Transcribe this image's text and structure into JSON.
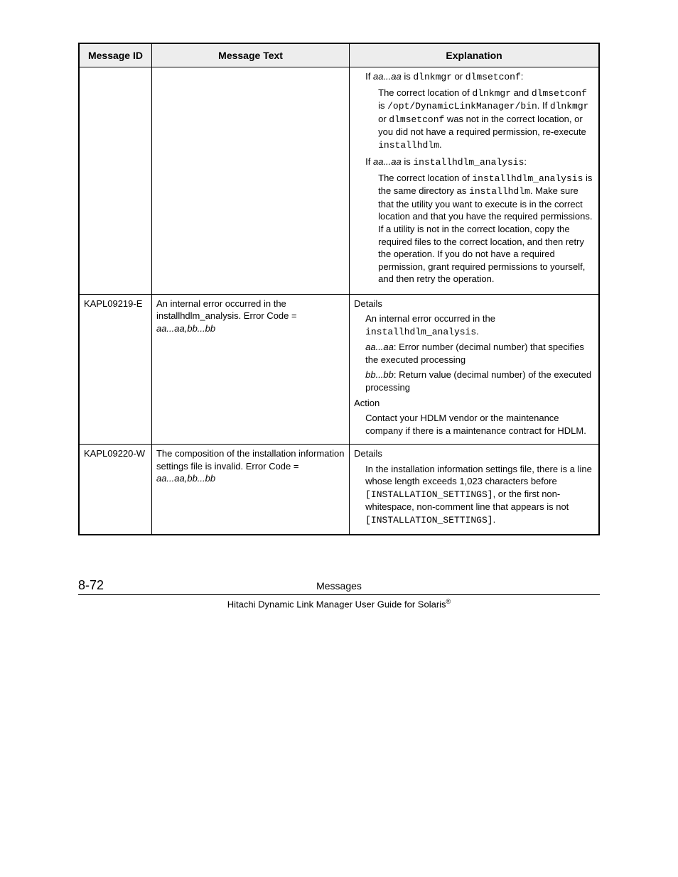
{
  "table": {
    "headers": {
      "c1": "Message ID",
      "c2": "Message Text",
      "c3": "Explanation"
    },
    "row1": {
      "exp": {
        "p1a": "If ",
        "p1b": "aa...aa",
        "p1c": " is ",
        "p1d": "dlnkmgr",
        "p1e": " or ",
        "p1f": "dlmsetconf",
        "p1g": ":",
        "p2a": "The correct location of ",
        "p2b": "dlnkmgr",
        "p2c": " and ",
        "p2d": "dlmsetconf",
        "p2e": " is ",
        "p2f": "/opt/DynamicLinkManager/bin",
        "p2g": ". If ",
        "p2h": "dlnkmgr",
        "p2i": " or ",
        "p2j": "dlmsetconf",
        "p2k": " was not in the correct location, or you did not have a required permission, re-execute ",
        "p2l": "installhdlm",
        "p2m": ".",
        "p3a": "If ",
        "p3b": "aa...aa",
        "p3c": " is ",
        "p3d": "installhdlm_analysis",
        "p3e": ":",
        "p4a": "The correct location of ",
        "p4b": "installhdlm_analysis",
        "p4c": " is the same directory as ",
        "p4d": "installhdlm",
        "p4e": ". Make sure that the utility you want to execute is in the correct location and that you have the required permissions. If a utility is not in the correct location, copy the required files to the correct location, and then retry the operation. If you do not have a required permission, grant required permissions to yourself, and then retry the operation."
      }
    },
    "row2": {
      "id": "KAPL09219-E",
      "msga": "An internal error occurred in the installhdlm_analysis. Error Code = ",
      "msgb": "aa...aa,bb...bb",
      "exp": {
        "d_label": "Details",
        "d1a": "An internal error occurred in the ",
        "d1b": "installhdlm_analysis",
        "d1c": ".",
        "d2a": "aa...aa",
        "d2b": ": Error number (decimal number) that specifies the executed processing",
        "d3a": "bb...bb",
        "d3b": ": Return value (decimal number) of the executed processing",
        "a_label": "Action",
        "a1": "Contact your HDLM vendor or the maintenance company if there is a maintenance contract for HDLM."
      }
    },
    "row3": {
      "id": "KAPL09220-W",
      "msga": "The composition of the installation information settings file is invalid. Error Code = ",
      "msgb": "aa...aa,bb...bb",
      "exp": {
        "d_label": "Details",
        "d1a": "In the installation information settings file, there is a line whose length exceeds 1,023 characters before ",
        "d1b": "[INSTALLATION_SETTINGS]",
        "d1c": ", or the first non-whitespace, non-comment line that appears is not ",
        "d1d": "[INSTALLATION_SETTINGS]",
        "d1e": "."
      }
    }
  },
  "footer": {
    "page_num": "8-72",
    "section": "Messages",
    "book_a": "Hitachi Dynamic Link Manager User Guide for Solaris",
    "reg": "®"
  }
}
